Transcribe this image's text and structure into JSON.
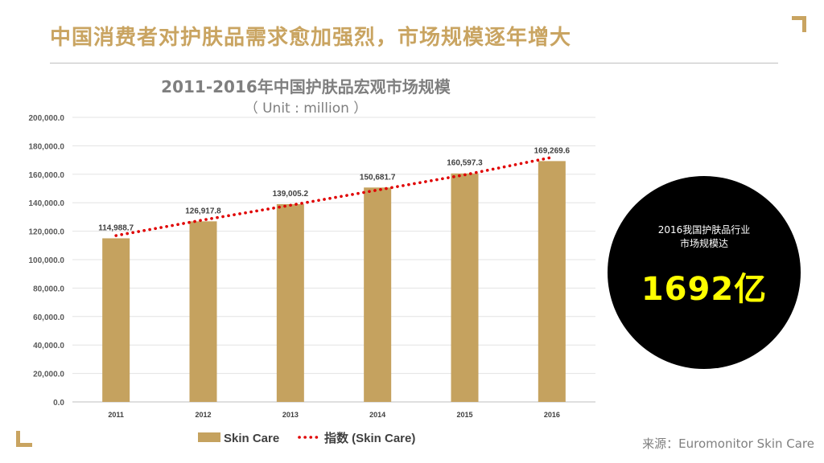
{
  "slide": {
    "title": "中国消费者对护肤品需求愈加强烈，市场规模逐年增大",
    "source": "来源：Euromonitor Skin Care"
  },
  "callout": {
    "line1": "2016我国护肤品行业",
    "line2": "市场规模达",
    "value": "1692亿"
  },
  "colors": {
    "accent": "#c9a461",
    "bar": "#c5a25f",
    "index_line": "#e00000",
    "callout_bg": "#000000",
    "callout_value": "#ffff00"
  },
  "chart_data": {
    "type": "bar",
    "title": "2011-2016年中国护肤品宏观市场规模",
    "subtitle": "（ Unit : million ）",
    "categories": [
      "2011",
      "2012",
      "2013",
      "2014",
      "2015",
      "2016"
    ],
    "series": [
      {
        "name": "Skin Care",
        "type": "bar",
        "values": [
          114988.7,
          126917.8,
          139005.2,
          150681.7,
          160597.3,
          169269.6
        ]
      },
      {
        "name": "指数 (Skin Care)",
        "type": "line-dotted-trend",
        "values": [
          116900,
          127900,
          138200,
          148900,
          159600,
          171900
        ]
      }
    ],
    "data_labels": [
      "114,988.7",
      "126,917.8",
      "139,005.2",
      "150,681.7",
      "160,597.3",
      "169,269.6"
    ],
    "y_ticks": [
      "0.0",
      "20,000.0",
      "40,000.0",
      "60,000.0",
      "80,000.0",
      "100,000.0",
      "120,000.0",
      "140,000.0",
      "160,000.0",
      "180,000.0",
      "200,000.0"
    ],
    "ylim": [
      0,
      200000
    ],
    "grid": true,
    "legend_position": "bottom"
  }
}
